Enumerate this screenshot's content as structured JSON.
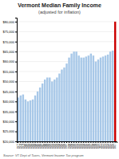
{
  "chart_data": {
    "type": "bar",
    "title": "Vermont Median Family Income",
    "subtitle": "(adjusted for inflation)",
    "annotations": [
      "Source: VT Dept of Taxes, Vermont Income Tax program"
    ],
    "categories": [
      "1977",
      "1978",
      "1979",
      "1980",
      "1981",
      "1982",
      "1983",
      "1984",
      "1985",
      "1986",
      "1987",
      "1988",
      "1989",
      "1990",
      "1991",
      "1992",
      "1993",
      "1994",
      "1995",
      "1996",
      "1997",
      "1998",
      "1999",
      "2000",
      "2001",
      "2002",
      "2003",
      "2004",
      "2005",
      "2006",
      "2007",
      "2008",
      "2009",
      "2010",
      "2011",
      "2012",
      "2013",
      "2014",
      "2015",
      "2016",
      "2017"
    ],
    "values": [
      42000,
      43000,
      43500,
      41000,
      40000,
      40500,
      41000,
      43000,
      45000,
      47000,
      49000,
      51000,
      52000,
      52000,
      50000,
      51000,
      52000,
      54000,
      56000,
      57000,
      59000,
      62000,
      64000,
      65000,
      65000,
      63000,
      62000,
      62000,
      62500,
      63000,
      64000,
      63000,
      60000,
      61000,
      62000,
      62500,
      63000,
      63500,
      65000,
      65500,
      80000
    ],
    "colors": [
      "#a8c8e8",
      "#a8c8e8",
      "#a8c8e8",
      "#a8c8e8",
      "#a8c8e8",
      "#a8c8e8",
      "#a8c8e8",
      "#a8c8e8",
      "#a8c8e8",
      "#a8c8e8",
      "#a8c8e8",
      "#a8c8e8",
      "#a8c8e8",
      "#a8c8e8",
      "#a8c8e8",
      "#a8c8e8",
      "#a8c8e8",
      "#a8c8e8",
      "#a8c8e8",
      "#a8c8e8",
      "#a8c8e8",
      "#a8c8e8",
      "#a8c8e8",
      "#a8c8e8",
      "#a8c8e8",
      "#a8c8e8",
      "#a8c8e8",
      "#a8c8e8",
      "#a8c8e8",
      "#a8c8e8",
      "#a8c8e8",
      "#a8c8e8",
      "#a8c8e8",
      "#a8c8e8",
      "#a8c8e8",
      "#a8c8e8",
      "#a8c8e8",
      "#a8c8e8",
      "#a8c8e8",
      "#a8c8e8",
      "#cc0000"
    ],
    "ylim": [
      20000,
      82000
    ],
    "yticks": [
      {
        "value": 20000,
        "label": "$20,000"
      },
      {
        "value": 25000,
        "label": "$25,000"
      },
      {
        "value": 30000,
        "label": "$30,000"
      },
      {
        "value": 35000,
        "label": "$35,000"
      },
      {
        "value": 40000,
        "label": "$40,000"
      },
      {
        "value": 45000,
        "label": "$45,000"
      },
      {
        "value": 50000,
        "label": "$50,000"
      },
      {
        "value": 55000,
        "label": "$55,000"
      },
      {
        "value": 60000,
        "label": "$60,000"
      },
      {
        "value": 65000,
        "label": "$65,000"
      },
      {
        "value": 70000,
        "label": "$70,000"
      },
      {
        "value": 75000,
        "label": "$75,000"
      },
      {
        "value": 80000,
        "label": "$80,000"
      }
    ],
    "grid": true
  }
}
